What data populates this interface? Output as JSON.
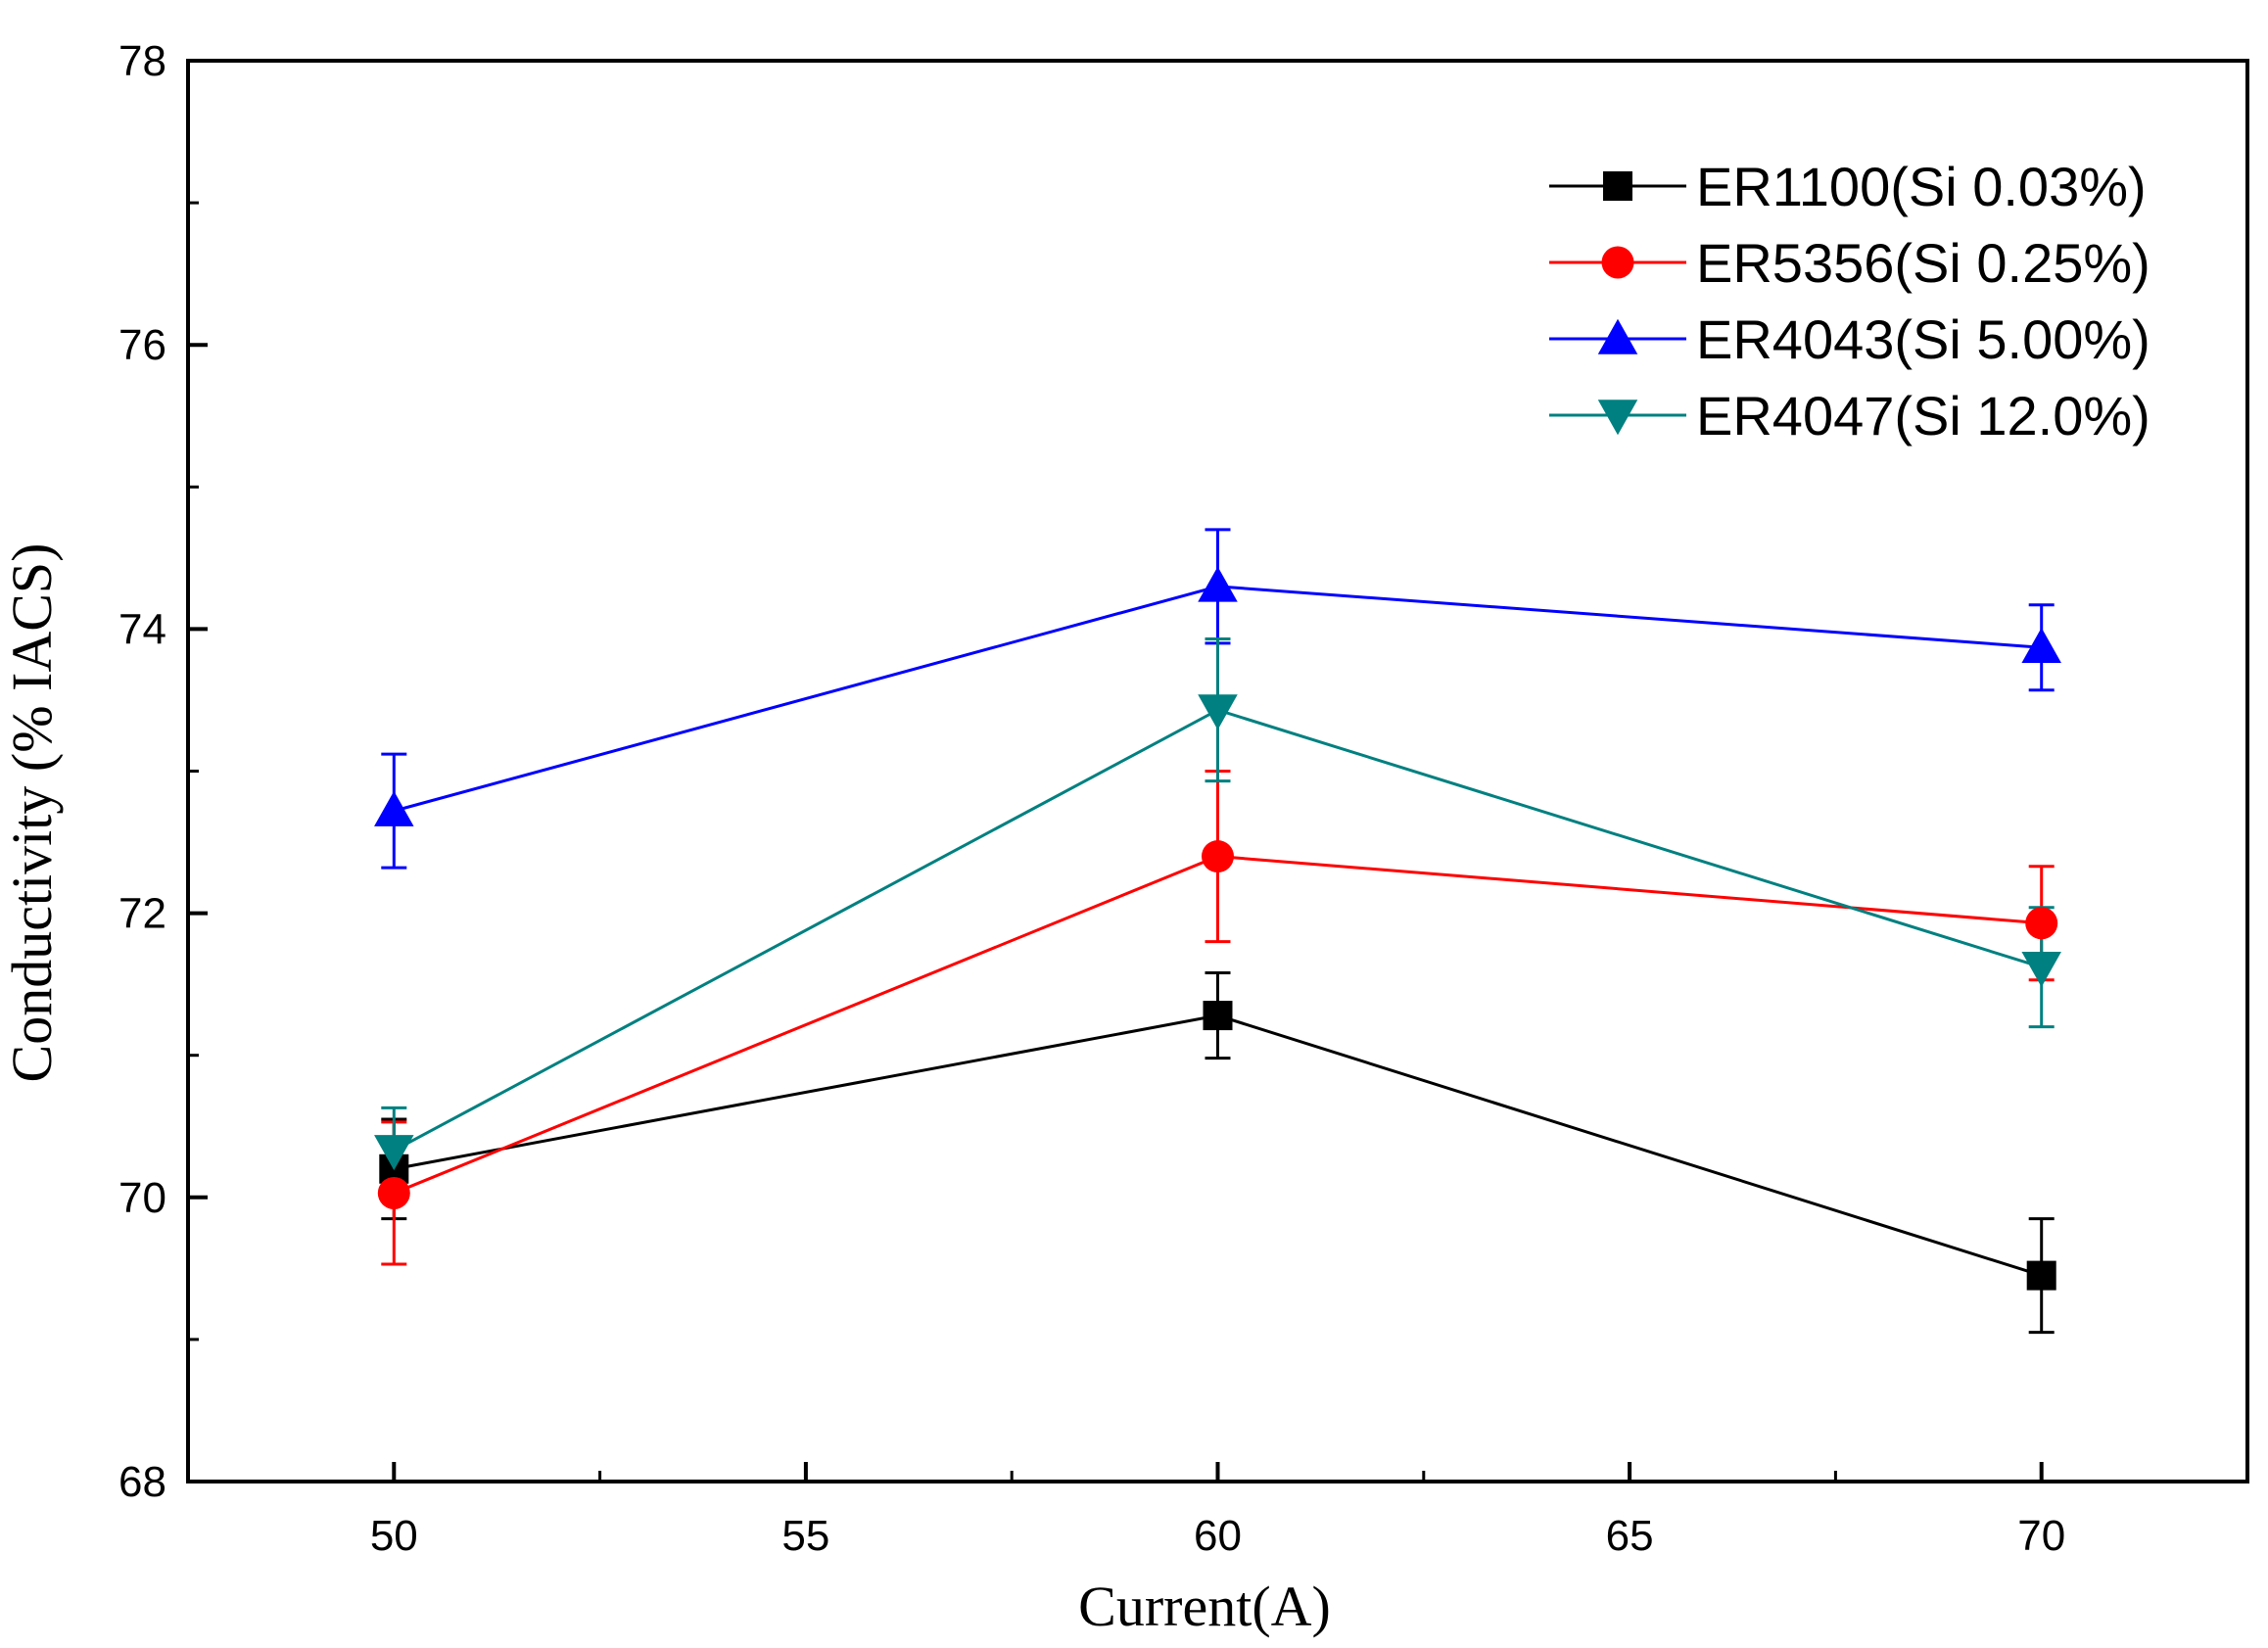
{
  "chart_data": {
    "type": "line",
    "title": "",
    "xlabel": "Current(A)",
    "ylabel": "Conductivity (% IACS)",
    "xlim": [
      47.5,
      72.5
    ],
    "ylim": [
      68,
      78
    ],
    "x_ticks": [
      50,
      55,
      60,
      65,
      70
    ],
    "y_ticks": [
      68,
      70,
      72,
      74,
      76,
      78
    ],
    "grid": false,
    "legend_position": "top-right",
    "x": [
      50,
      60,
      70
    ],
    "series": [
      {
        "name": "ER1100(Si 0.03%)",
        "color": "#000000",
        "marker": "square",
        "values": [
          70.2,
          71.28,
          69.45
        ],
        "errors": [
          0.35,
          0.3,
          0.4
        ]
      },
      {
        "name": "ER5356(Si 0.25%)",
        "color": "#ff0000",
        "marker": "circle",
        "values": [
          70.03,
          72.4,
          71.93
        ],
        "errors": [
          0.5,
          0.6,
          0.4
        ]
      },
      {
        "name": "ER4043(Si 5.00%)",
        "color": "#0000ff",
        "marker": "triangle-up",
        "values": [
          72.72,
          74.3,
          73.87
        ],
        "errors": [
          0.4,
          0.4,
          0.3
        ]
      },
      {
        "name": "ER4047(Si 12.0%)",
        "color": "#008080",
        "marker": "triangle-down",
        "values": [
          70.33,
          73.43,
          71.62
        ],
        "errors": [
          0.3,
          0.5,
          0.42
        ]
      }
    ]
  }
}
